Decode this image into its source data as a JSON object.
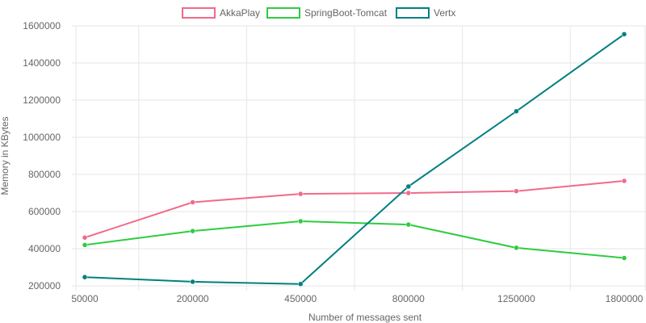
{
  "chart_data": {
    "type": "line",
    "title": "",
    "xlabel": "Number of messages sent",
    "ylabel": "Memory in KBytes",
    "categories": [
      "50000",
      "200000",
      "450000",
      "800000",
      "1250000",
      "1800000"
    ],
    "y_ticks": [
      "200000",
      "400000",
      "600000",
      "800000",
      "1000000",
      "1200000",
      "1400000",
      "1600000"
    ],
    "ylim": [
      200000,
      1600000
    ],
    "grid": true,
    "legend_position": "top",
    "series": [
      {
        "name": "AkkaPlay",
        "color": "#f06a8b",
        "values": [
          460000,
          650000,
          695000,
          700000,
          710000,
          765000
        ]
      },
      {
        "name": "SpringBoot-Tomcat",
        "color": "#2ecc40",
        "values": [
          420000,
          495000,
          548000,
          530000,
          405000,
          350000
        ]
      },
      {
        "name": "Vertx",
        "color": "#008080",
        "values": [
          247000,
          222000,
          210000,
          735000,
          1140000,
          1555000
        ]
      }
    ]
  }
}
